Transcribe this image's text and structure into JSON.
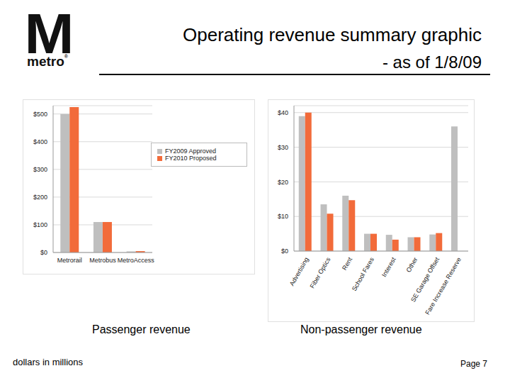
{
  "header": {
    "logo_letter": "M",
    "logo_text": "metro",
    "logo_mark": "®",
    "title": "Operating revenue summary graphic",
    "subtitle": "- as of 1/8/09"
  },
  "chart_data": [
    {
      "type": "bar",
      "xlabel": "Passenger revenue",
      "categories": [
        "Metrorail",
        "Metrobus",
        "MetroAccess"
      ],
      "series": [
        {
          "name": "FY2009 Approved",
          "color": "#bfbfbf",
          "values": [
            500,
            110,
            4
          ]
        },
        {
          "name": "FY2010 Proposed",
          "color": "#f26b3a",
          "values": [
            525,
            110,
            5
          ]
        }
      ],
      "ylim": [
        0,
        530
      ],
      "yticks": [
        {
          "value": 0,
          "label": "$0"
        },
        {
          "value": 100,
          "label": "$100"
        },
        {
          "value": 200,
          "label": "$200"
        },
        {
          "value": 300,
          "label": "$300"
        },
        {
          "value": 400,
          "label": "$400"
        },
        {
          "value": 500,
          "label": "$500"
        }
      ],
      "grid": true,
      "legend": "right"
    },
    {
      "type": "bar",
      "xlabel": "Non-passenger revenue",
      "categories": [
        "Advertising",
        "Fiber Optics",
        "Rent",
        "School Fares",
        "Interest",
        "Other",
        "SE Garage Offset",
        "Fare Increase Reserve"
      ],
      "series": [
        {
          "name": "FY2009 Approved",
          "color": "#bfbfbf",
          "values": [
            39,
            13.5,
            16,
            5,
            4.7,
            4,
            4.8,
            36
          ]
        },
        {
          "name": "FY2010 Proposed",
          "color": "#f26b3a",
          "values": [
            40,
            10.8,
            14.7,
            5,
            3.3,
            4,
            5.2,
            null
          ]
        }
      ],
      "ylim": [
        0,
        42
      ],
      "yticks": [
        {
          "value": 0,
          "label": "$0"
        },
        {
          "value": 10,
          "label": "$10"
        },
        {
          "value": 20,
          "label": "$20"
        },
        {
          "value": 30,
          "label": "$30"
        },
        {
          "value": 40,
          "label": "$40"
        }
      ],
      "grid": true
    }
  ],
  "footer": {
    "note": "dollars in millions",
    "page": "Page 7"
  }
}
